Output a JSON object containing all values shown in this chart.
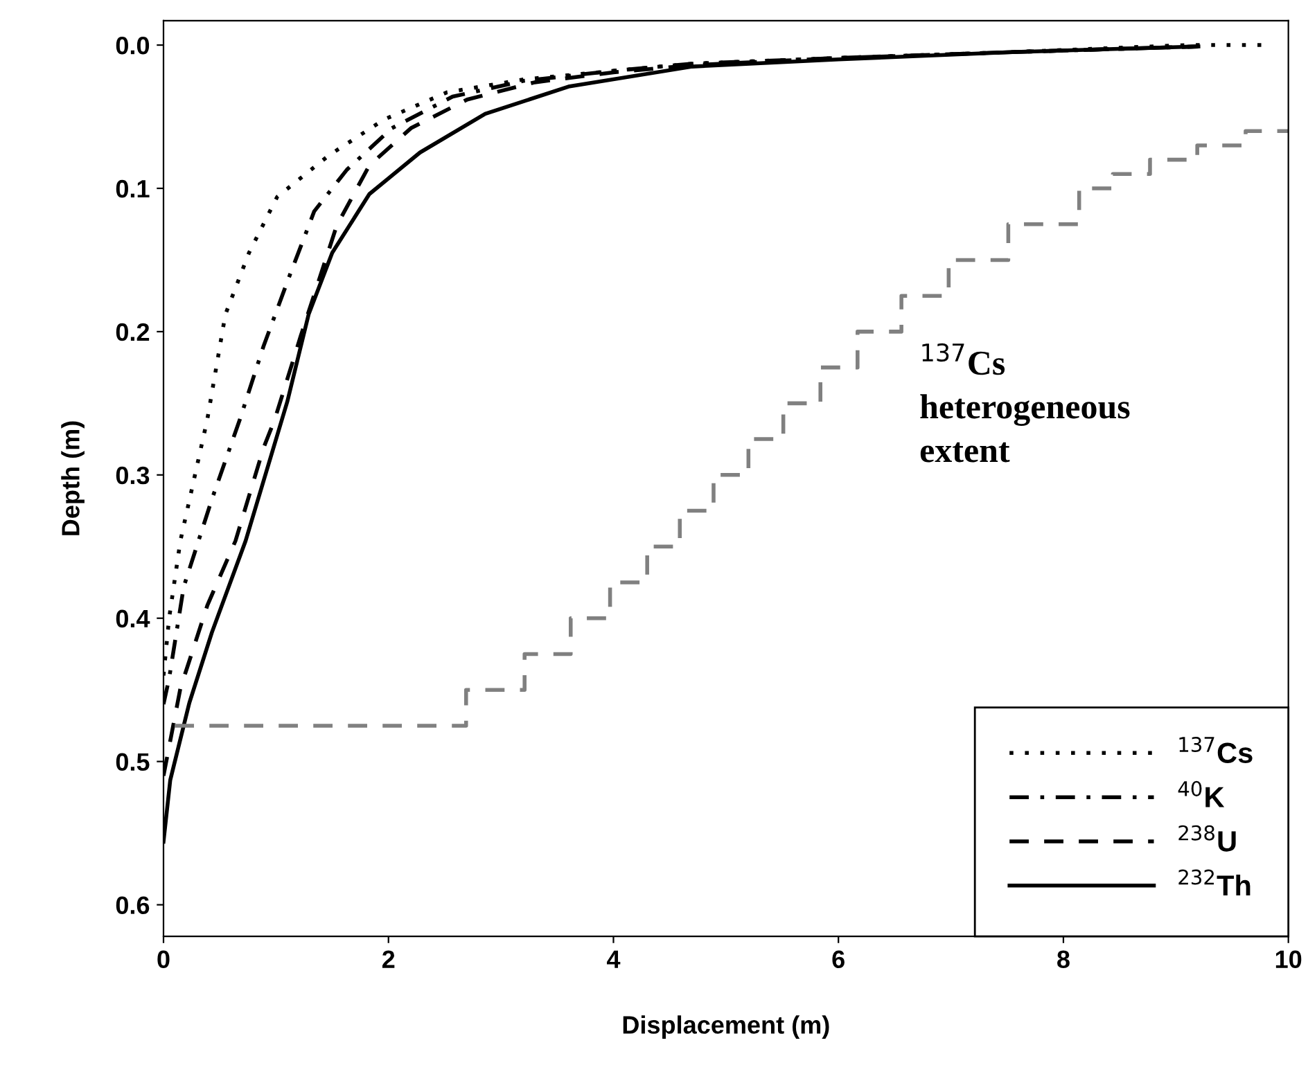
{
  "chart_data": {
    "type": "line",
    "xlabel": "Displacement (m)",
    "ylabel": "Depth (m)",
    "xlim": [
      0,
      10
    ],
    "ylim": [
      0.622,
      -0.017
    ],
    "xticks": [
      {
        "value": 0,
        "label": "0"
      },
      {
        "value": 2,
        "label": "2"
      },
      {
        "value": 4,
        "label": "4"
      },
      {
        "value": 6,
        "label": "6"
      },
      {
        "value": 8,
        "label": "8"
      },
      {
        "value": 10,
        "label": "10"
      }
    ],
    "yticks": [
      {
        "value": 0,
        "label": "0.0"
      },
      {
        "value": 0.1,
        "label": "0.1"
      },
      {
        "value": 0.2,
        "label": "0.2"
      },
      {
        "value": 0.3,
        "label": "0.3"
      },
      {
        "value": 0.4,
        "label": "0.4"
      },
      {
        "value": 0.5,
        "label": "0.5"
      },
      {
        "value": 0.6,
        "label": "0.6"
      }
    ],
    "grid": false,
    "legend": "bottom right",
    "marker": "none",
    "annotations": [
      "$^{137}$Cs\nheterogeneous\nextent"
    ],
    "series": [
      {
        "name": "$^{137}$Cs",
        "color": "#000000",
        "line_style": "dotted",
        "x": [
          0,
          0.05,
          0.15,
          0.39,
          0.55,
          0.76,
          1.01,
          1.47,
          1.96,
          2.52,
          3.2,
          4.0,
          4.7,
          6.0,
          7.5,
          9.1,
          9.8
        ],
        "values": [
          0.44,
          0.4,
          0.346,
          0.261,
          0.188,
          0.145,
          0.106,
          0.077,
          0.052,
          0.033,
          0.024,
          0.018,
          0.013,
          0.009,
          0.005,
          0.0,
          0.0
        ]
      },
      {
        "name": "$^{40}$K",
        "color": "#000000",
        "line_style": "dashdot",
        "x": [
          0,
          0.05,
          0.18,
          0.43,
          0.68,
          0.89,
          1.13,
          1.34,
          1.63,
          2.03,
          2.57,
          3.2,
          4.0,
          4.7,
          6.0,
          7.5,
          9.2
        ],
        "values": [
          0.46,
          0.442,
          0.378,
          0.317,
          0.261,
          0.21,
          0.159,
          0.116,
          0.087,
          0.058,
          0.036,
          0.025,
          0.018,
          0.013,
          0.009,
          0.005,
          0.001
        ]
      },
      {
        "name": "$^{238}$U",
        "color": "#000000",
        "line_style": "dashed",
        "x": [
          0,
          0.15,
          0.39,
          0.64,
          0.89,
          0.99,
          1.22,
          1.54,
          1.83,
          2.2,
          2.7,
          3.3,
          4.0,
          4.7,
          6.0,
          7.5,
          9.2
        ],
        "values": [
          0.51,
          0.449,
          0.391,
          0.346,
          0.281,
          0.261,
          0.203,
          0.126,
          0.084,
          0.058,
          0.038,
          0.026,
          0.019,
          0.014,
          0.009,
          0.005,
          0.001
        ]
      },
      {
        "name": "$^{232}$Th",
        "color": "#000000",
        "line_style": "solid",
        "x": [
          0,
          0.06,
          0.23,
          0.43,
          0.73,
          1.1,
          1.29,
          1.5,
          1.83,
          2.28,
          2.86,
          3.6,
          4.7,
          6.0,
          7.5,
          9.2
        ],
        "values": [
          0.556,
          0.513,
          0.459,
          0.41,
          0.346,
          0.249,
          0.188,
          0.145,
          0.104,
          0.075,
          0.048,
          0.029,
          0.015,
          0.01,
          0.005,
          0.001
        ]
      },
      {
        "type": "step",
        "color": "#808080",
        "line_style": "dashed",
        "x": [
          0.1,
          2.69,
          3.21,
          3.62,
          3.97,
          4.3,
          4.59,
          4.89,
          5.2,
          5.51,
          5.84,
          6.17,
          6.56,
          6.98,
          7.51,
          8.14,
          8.44,
          8.77,
          9.19,
          9.62,
          10
        ],
        "values": [
          0.475,
          0.45,
          0.425,
          0.4,
          0.375,
          0.35,
          0.325,
          0.3,
          0.275,
          0.25,
          0.225,
          0.2,
          0.175,
          0.15,
          0.125,
          0.1,
          0.09,
          0.08,
          0.07,
          0.06,
          0.06
        ]
      }
    ]
  }
}
